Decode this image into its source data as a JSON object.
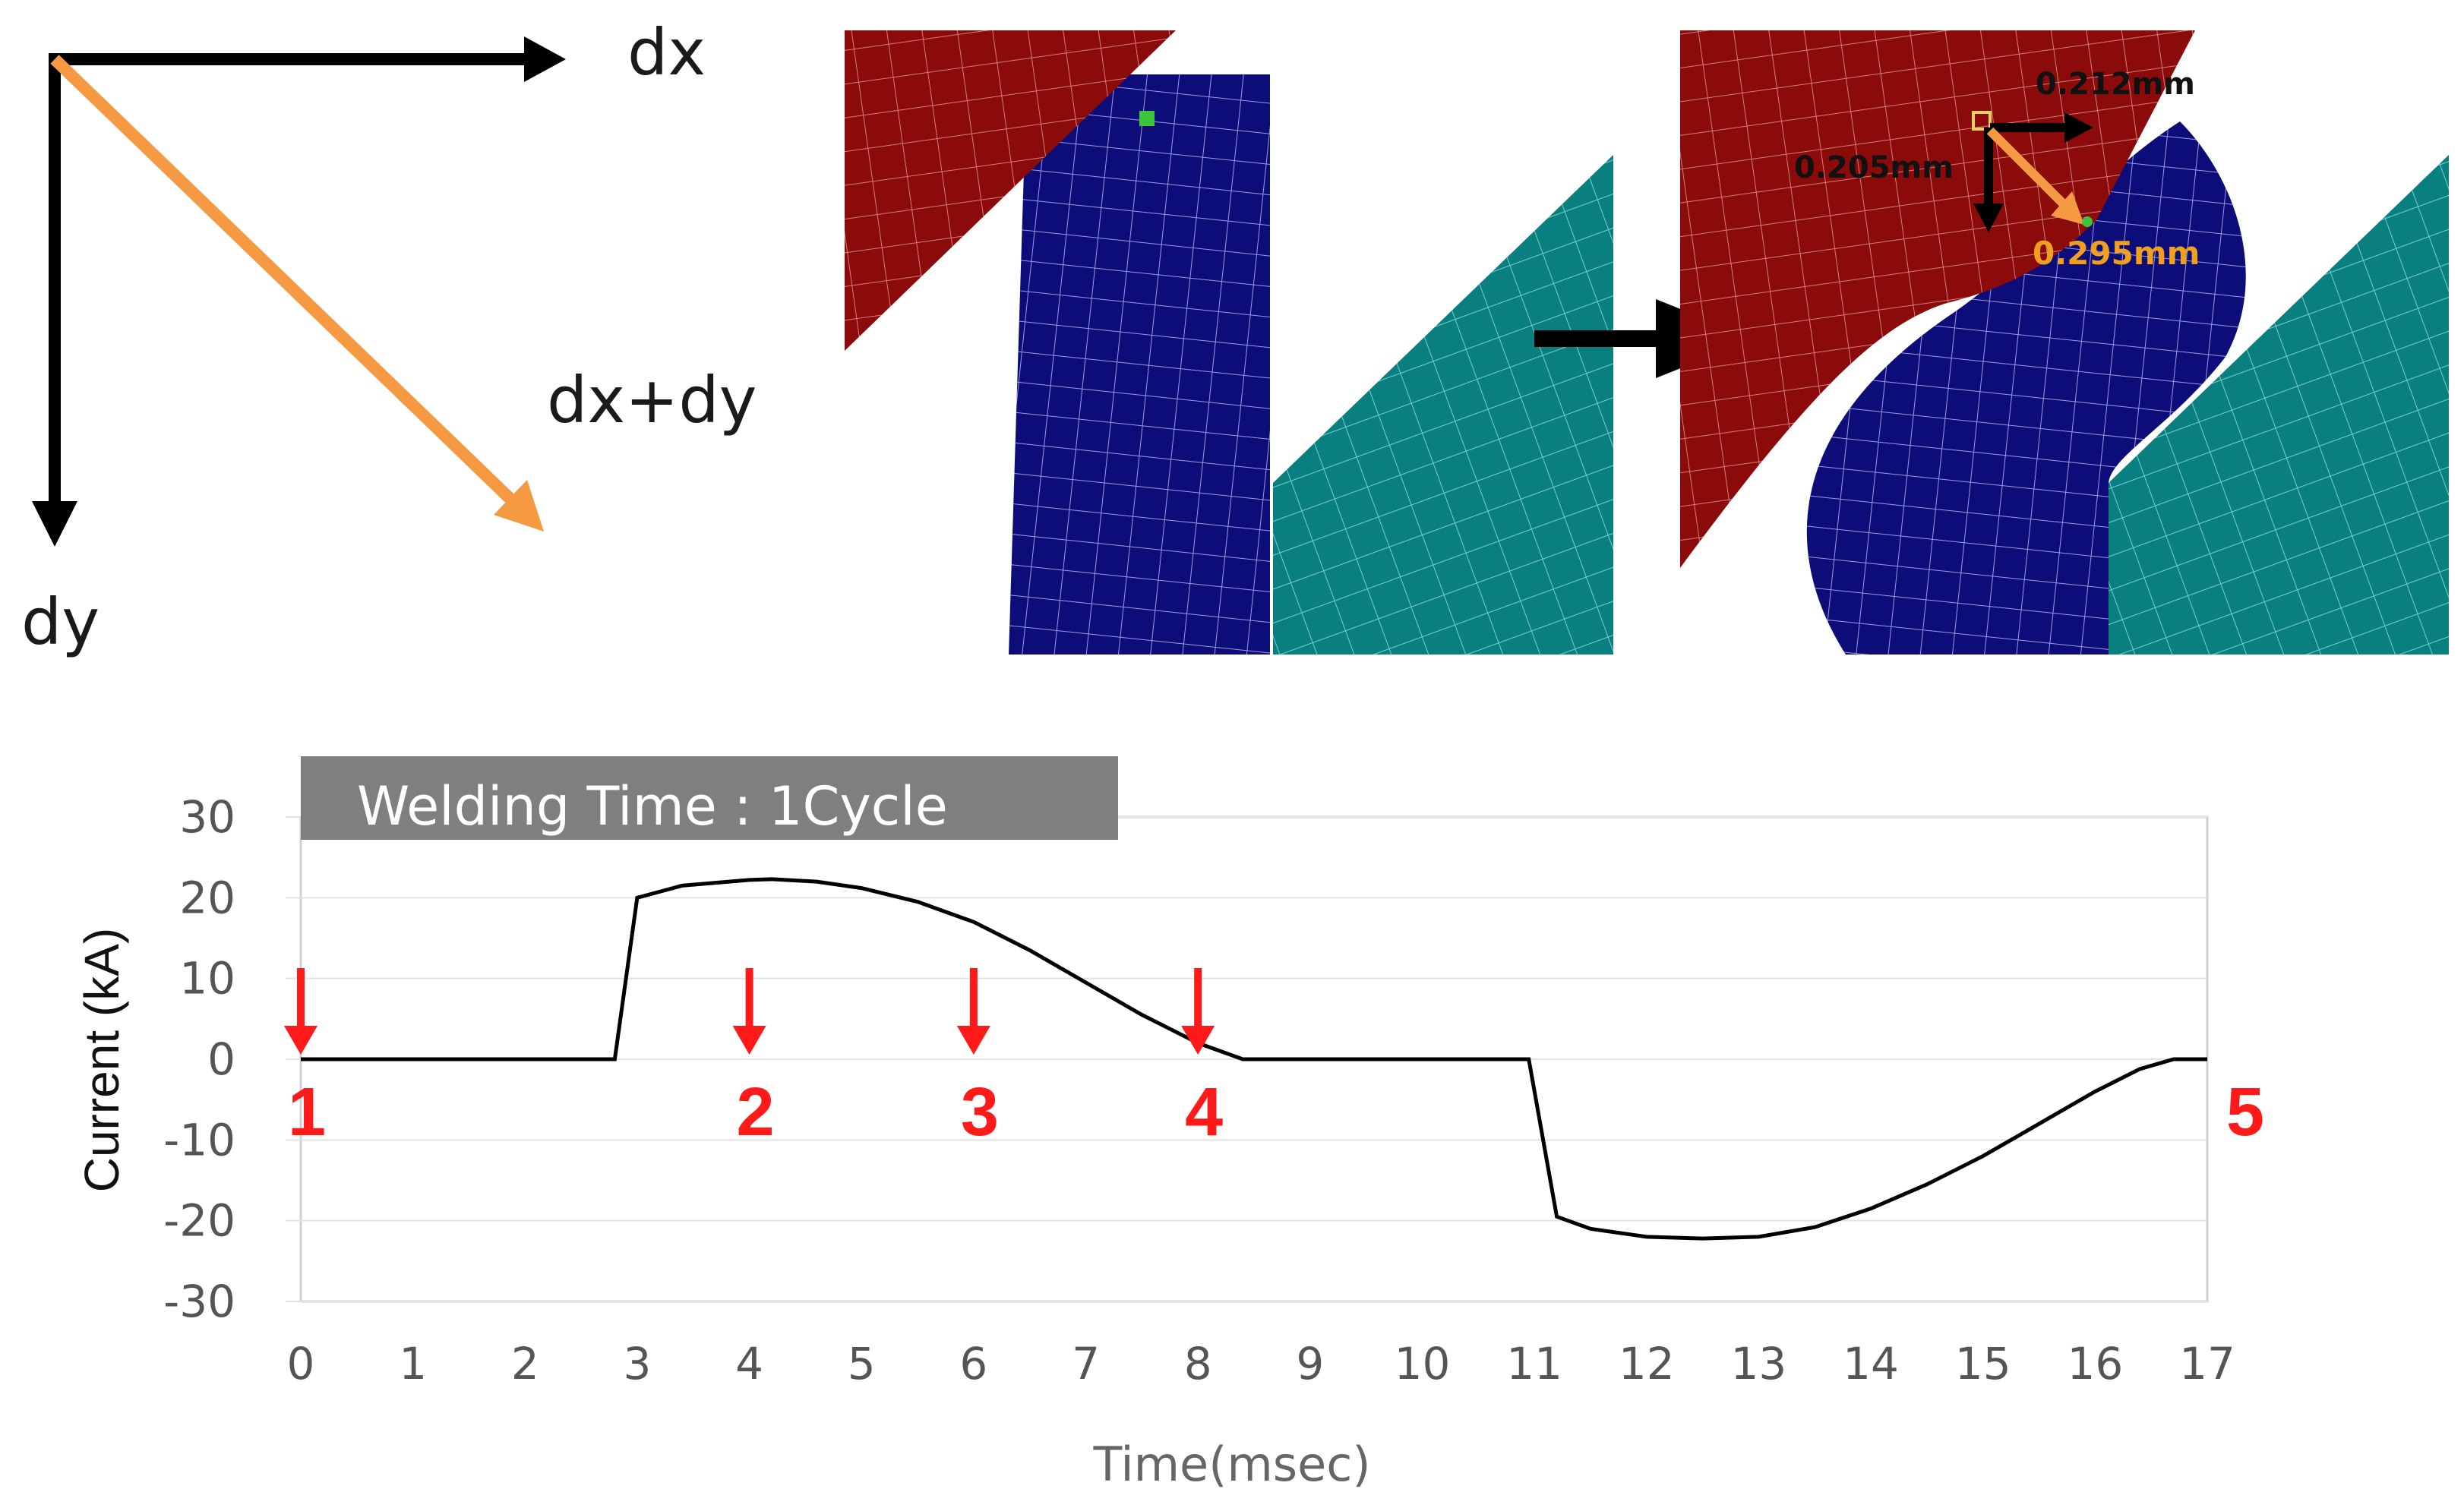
{
  "vector_diagram": {
    "dx_label": "dx",
    "dy_label": "dy",
    "sum_label": "dx+dy"
  },
  "fem_after": {
    "dx_value": "0.212mm",
    "dy_value": "0.205mm",
    "resultant_value": "0.295mm"
  },
  "colors": {
    "upper_electrode": "#8b0a0a",
    "sheet": "#0d0d7a",
    "lower_electrode": "#0a7f7f",
    "arrow_result": "#f59a42",
    "marker_red": "#ff1a1a",
    "banner_bg": "#7f7f7f"
  },
  "chart_data": {
    "type": "line",
    "title": "Welding Time : 1Cycle",
    "xlabel": "Time(msec)",
    "ylabel": "Current (kA)",
    "xlim": [
      0,
      17
    ],
    "ylim": [
      -30,
      30
    ],
    "xticks": [
      0,
      1,
      2,
      3,
      4,
      5,
      6,
      7,
      8,
      9,
      10,
      11,
      12,
      13,
      14,
      15,
      16,
      17
    ],
    "yticks": [
      30,
      20,
      10,
      0,
      -10,
      -20,
      -30
    ],
    "grid": true,
    "series": [
      {
        "name": "Current",
        "x": [
          0,
          1,
          2,
          2.8,
          3.0,
          3.4,
          4.0,
          4.2,
          4.6,
          5.0,
          5.5,
          6.0,
          6.5,
          7.0,
          7.5,
          8.0,
          8.4,
          9,
          10,
          10.95,
          11.2,
          11.5,
          12.0,
          12.5,
          13.0,
          13.5,
          14.0,
          14.5,
          15.0,
          15.5,
          16.0,
          16.4,
          16.7,
          17
        ],
        "values": [
          0,
          0,
          0,
          0,
          20,
          21.5,
          22.2,
          22.3,
          22.0,
          21.2,
          19.5,
          17.0,
          13.5,
          9.5,
          5.5,
          2.0,
          0,
          0,
          0,
          0,
          -19.5,
          -21.0,
          -22.0,
          -22.2,
          -22.0,
          -20.8,
          -18.5,
          -15.5,
          -12.0,
          -8.0,
          -4.0,
          -1.2,
          0,
          0
        ]
      }
    ],
    "markers": [
      {
        "label": "1",
        "x": 0
      },
      {
        "label": "2",
        "x": 4
      },
      {
        "label": "3",
        "x": 6
      },
      {
        "label": "4",
        "x": 8
      },
      {
        "label": "5",
        "x": 17
      }
    ]
  }
}
